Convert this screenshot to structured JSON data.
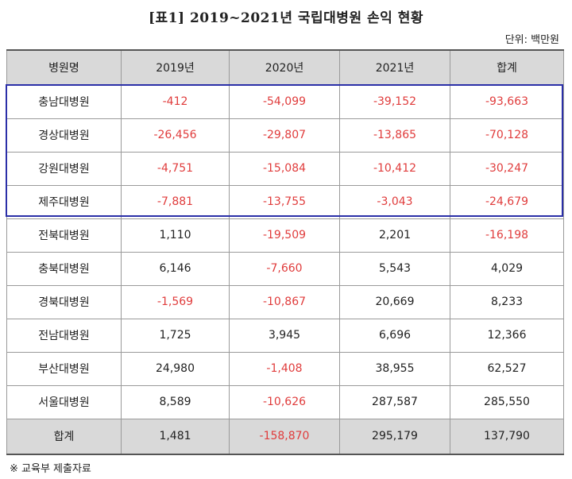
{
  "title": "[표1] 2019~2021년 국립대병원 손익 현황",
  "unit": "단위: 백만원",
  "table": {
    "headers": [
      "병원명",
      "2019년",
      "2020년",
      "2021년",
      "합계"
    ],
    "rows": [
      {
        "name": "충남대병원",
        "cells": [
          "-412",
          "-54,099",
          "-39,152",
          "-93,663"
        ]
      },
      {
        "name": "경상대병원",
        "cells": [
          "-26,456",
          "-29,807",
          "-13,865",
          "-70,128"
        ]
      },
      {
        "name": "강원대병원",
        "cells": [
          "-4,751",
          "-15,084",
          "-10,412",
          "-30,247"
        ]
      },
      {
        "name": "제주대병원",
        "cells": [
          "-7,881",
          "-13,755",
          "-3,043",
          "-24,679"
        ]
      },
      {
        "name": "전북대병원",
        "cells": [
          "1,110",
          "-19,509",
          "2,201",
          "-16,198"
        ]
      },
      {
        "name": "충북대병원",
        "cells": [
          "6,146",
          "-7,660",
          "5,543",
          "4,029"
        ]
      },
      {
        "name": "경북대병원",
        "cells": [
          "-1,569",
          "-10,867",
          "20,669",
          "8,233"
        ]
      },
      {
        "name": "전남대병원",
        "cells": [
          "1,725",
          "3,945",
          "6,696",
          "12,366"
        ]
      },
      {
        "name": "부산대병원",
        "cells": [
          "24,980",
          "-1,408",
          "38,955",
          "62,527"
        ]
      },
      {
        "name": "서울대병원",
        "cells": [
          "8,589",
          "-10,626",
          "287,587",
          "285,550"
        ]
      }
    ],
    "total": {
      "name": "합계",
      "cells": [
        "1,481",
        "-158,870",
        "295,179",
        "137,790"
      ]
    }
  },
  "note": "※ 교육부 제출자료",
  "colors": {
    "negative": "#e03c3c",
    "header_bg": "#d9d9d9",
    "highlight_border": "#2b2fa8"
  }
}
